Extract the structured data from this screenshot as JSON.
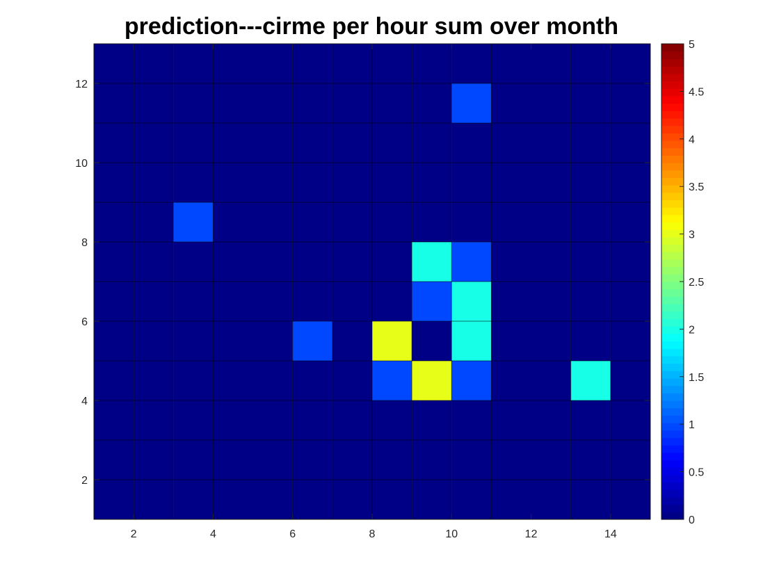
{
  "chart_data": {
    "type": "heatmap",
    "title": "prediction---cirme per hour sum over month",
    "xlabel": "",
    "ylabel": "",
    "xlim": [
      1,
      15
    ],
    "ylim": [
      1,
      13
    ],
    "grid": true,
    "xticks": [
      2,
      4,
      6,
      8,
      10,
      12,
      14
    ],
    "yticks": [
      2,
      4,
      6,
      8,
      10,
      12
    ],
    "x_tick_labels": [
      "2",
      "4",
      "6",
      "8",
      "10",
      "12",
      "14"
    ],
    "y_tick_labels": [
      "2",
      "4",
      "6",
      "8",
      "10",
      "12"
    ],
    "colormap": "jet",
    "colormap_levels": 64,
    "color_range": [
      0,
      5
    ],
    "colorbar": {
      "location": "right",
      "ticks": [
        0,
        0.5,
        1,
        1.5,
        2,
        2.5,
        3,
        3.5,
        4,
        4.5,
        5
      ],
      "tick_labels": [
        "0",
        "0.5",
        "1",
        "1.5",
        "2",
        "2.5",
        "3",
        "3.5",
        "4",
        "4.5",
        "5"
      ]
    },
    "x_cells": [
      1,
      2,
      3,
      4,
      5,
      6,
      7,
      8,
      9,
      10,
      11,
      12,
      13,
      14
    ],
    "y_cells": [
      1,
      2,
      3,
      4,
      5,
      6,
      7,
      8,
      9,
      10,
      11,
      12
    ],
    "background_value": 0,
    "nonzero_cells": [
      {
        "x": 10,
        "y": 11,
        "value": 1
      },
      {
        "x": 3,
        "y": 8,
        "value": 1
      },
      {
        "x": 9,
        "y": 7,
        "value": 2
      },
      {
        "x": 10,
        "y": 7,
        "value": 1
      },
      {
        "x": 9,
        "y": 6,
        "value": 1
      },
      {
        "x": 10,
        "y": 6,
        "value": 2
      },
      {
        "x": 6,
        "y": 5,
        "value": 1
      },
      {
        "x": 8,
        "y": 5,
        "value": 3
      },
      {
        "x": 10,
        "y": 5,
        "value": 2
      },
      {
        "x": 8,
        "y": 4,
        "value": 1
      },
      {
        "x": 9,
        "y": 4,
        "value": 3
      },
      {
        "x": 10,
        "y": 4,
        "value": 1
      },
      {
        "x": 13,
        "y": 4,
        "value": 2
      }
    ]
  }
}
